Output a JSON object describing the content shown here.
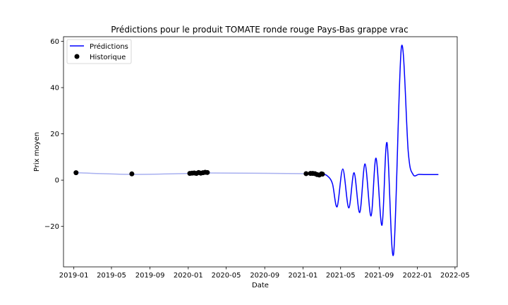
{
  "chart_data": {
    "type": "line",
    "title": "Prédictions pour le produit TOMATE ronde rouge Pays-Bas grappe vrac",
    "xlabel": "Date",
    "ylabel": "Prix moyen",
    "xlim": [
      "2018-11-29",
      "2022-05-08"
    ],
    "ylim": [
      -37.5,
      62
    ],
    "grid": false,
    "legend_position": "top-left",
    "x_ticks": [
      {
        "date": "2019-01-01",
        "label": "2019-01"
      },
      {
        "date": "2019-05-01",
        "label": "2019-05"
      },
      {
        "date": "2019-09-01",
        "label": "2019-09"
      },
      {
        "date": "2020-01-01",
        "label": "2020-01"
      },
      {
        "date": "2020-05-01",
        "label": "2020-05"
      },
      {
        "date": "2020-09-01",
        "label": "2020-09"
      },
      {
        "date": "2021-01-01",
        "label": "2021-01"
      },
      {
        "date": "2021-05-01",
        "label": "2021-05"
      },
      {
        "date": "2021-09-01",
        "label": "2021-09"
      },
      {
        "date": "2022-01-01",
        "label": "2022-01"
      },
      {
        "date": "2022-05-01",
        "label": "2022-05"
      }
    ],
    "y_ticks": [
      {
        "value": -20,
        "label": "−20"
      },
      {
        "value": 0,
        "label": "0"
      },
      {
        "value": 20,
        "label": "20"
      },
      {
        "value": 40,
        "label": "40"
      },
      {
        "value": 60,
        "label": "60"
      }
    ],
    "series": [
      {
        "name": "Prédictions",
        "color": "#0000ff",
        "faded_color": "#a8b0f0",
        "faded_until": "2021-03-04",
        "points": [
          [
            "2019-01-08",
            3.2
          ],
          [
            "2019-07-05",
            2.5
          ],
          [
            "2020-01-06",
            2.9
          ],
          [
            "2020-03-02",
            3.1
          ],
          [
            "2021-01-11",
            2.8
          ],
          [
            "2021-03-04",
            2.7
          ],
          [
            "2021-03-20",
            1.8
          ],
          [
            "2021-04-05",
            -1.5
          ],
          [
            "2021-04-20",
            -11.5
          ],
          [
            "2021-05-08",
            4.8
          ],
          [
            "2021-05-27",
            -12
          ],
          [
            "2021-06-13",
            3.2
          ],
          [
            "2021-07-01",
            -14
          ],
          [
            "2021-07-18",
            7
          ],
          [
            "2021-08-06",
            -15.5
          ],
          [
            "2021-08-22",
            9.5
          ],
          [
            "2021-09-10",
            -19.5
          ],
          [
            "2021-09-26",
            16.2
          ],
          [
            "2021-10-17",
            -32
          ],
          [
            "2021-11-11",
            57.5
          ],
          [
            "2021-12-03",
            12
          ],
          [
            "2021-12-18",
            2.5
          ],
          [
            "2022-01-06",
            2.5
          ],
          [
            "2022-02-01",
            2.4
          ],
          [
            "2022-03-09",
            2.4
          ]
        ]
      },
      {
        "name": "Historique",
        "color": "#000000",
        "points": [
          [
            "2019-01-08",
            3.2
          ],
          [
            "2019-07-05",
            2.7
          ],
          [
            "2020-01-06",
            2.9
          ],
          [
            "2020-01-13",
            3.0
          ],
          [
            "2020-01-20",
            3.1
          ],
          [
            "2020-01-27",
            2.9
          ],
          [
            "2020-02-03",
            3.3
          ],
          [
            "2020-02-10",
            3.0
          ],
          [
            "2020-02-17",
            3.2
          ],
          [
            "2020-02-24",
            3.4
          ],
          [
            "2020-03-02",
            3.3
          ],
          [
            "2021-01-11",
            2.8
          ],
          [
            "2021-01-25",
            2.9
          ],
          [
            "2021-02-01",
            2.9
          ],
          [
            "2021-02-08",
            2.8
          ],
          [
            "2021-02-15",
            2.4
          ],
          [
            "2021-02-22",
            2.2
          ],
          [
            "2021-03-01",
            2.7
          ],
          [
            "2021-03-04",
            2.6
          ]
        ]
      }
    ]
  }
}
